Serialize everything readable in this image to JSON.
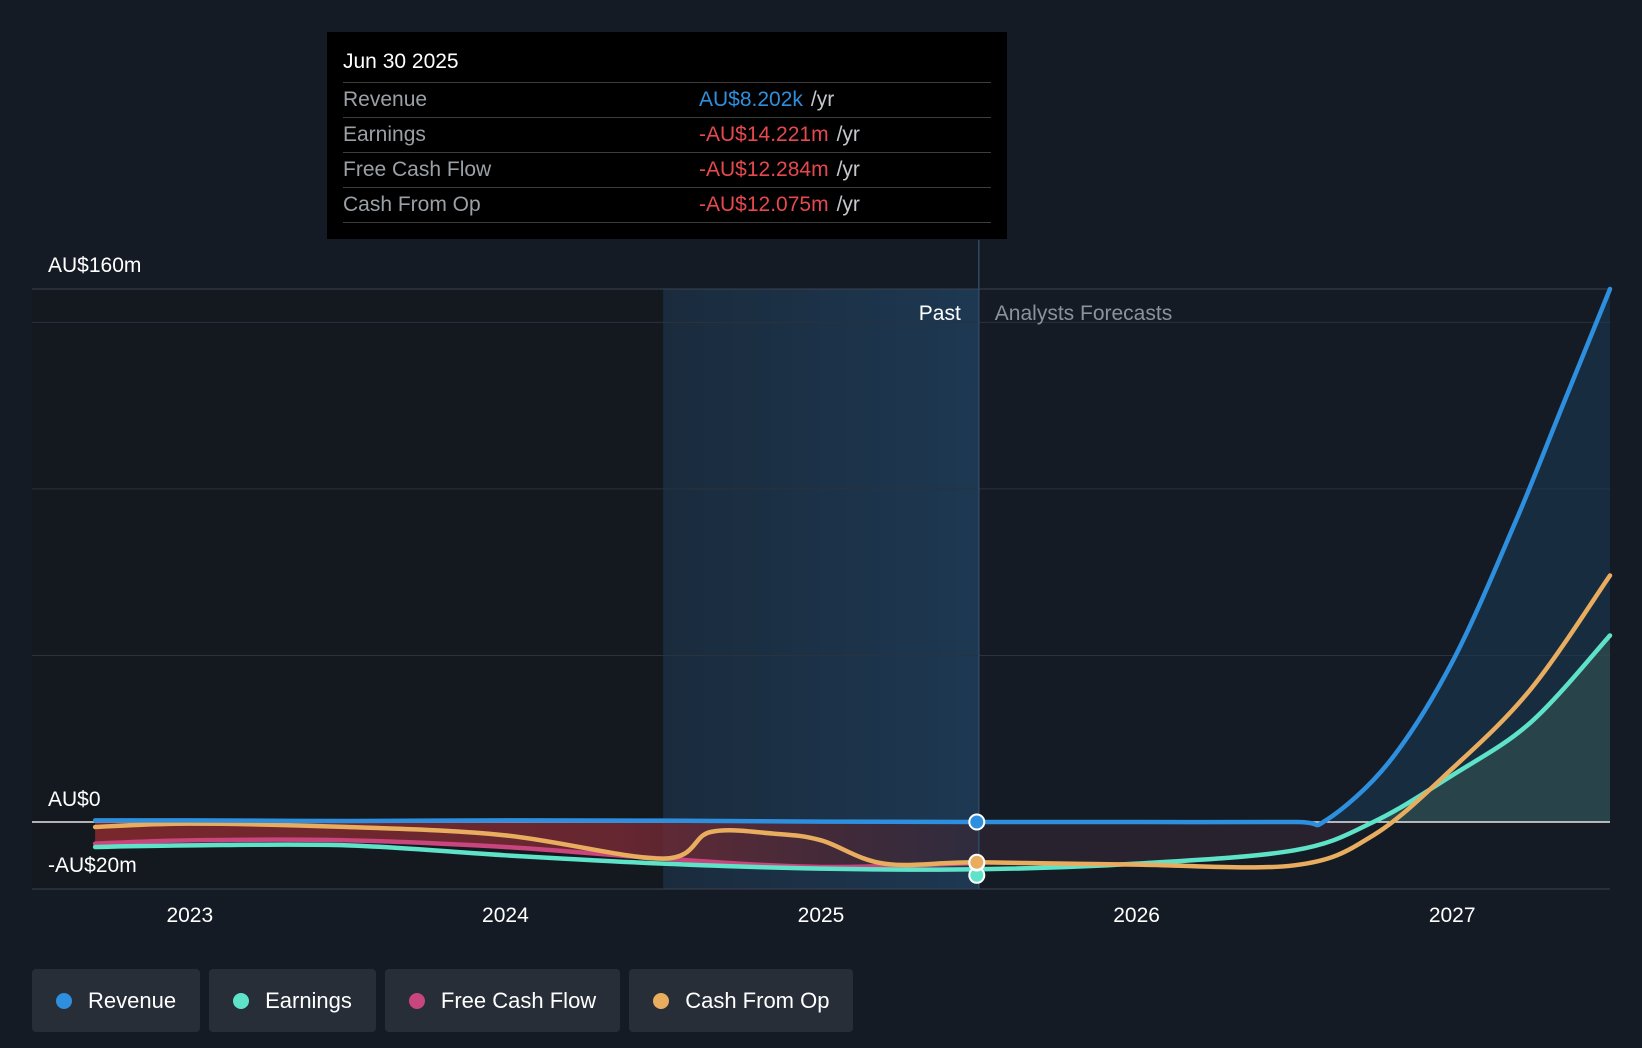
{
  "tooltip": {
    "date": "Jun 30 2025",
    "rows": [
      {
        "label": "Revenue",
        "value": "AU$8.202k",
        "unit": "/yr",
        "color": "#2d8fdd"
      },
      {
        "label": "Earnings",
        "value": "-AU$14.221m",
        "unit": "/yr",
        "color": "#e5484d"
      },
      {
        "label": "Free Cash Flow",
        "value": "-AU$12.284m",
        "unit": "/yr",
        "color": "#e5484d"
      },
      {
        "label": "Cash From Op",
        "value": "-AU$12.075m",
        "unit": "/yr",
        "color": "#e5484d"
      }
    ]
  },
  "legend": [
    {
      "label": "Revenue",
      "color": "#2d8fdd"
    },
    {
      "label": "Earnings",
      "color": "#5ee3c8"
    },
    {
      "label": "Free Cash Flow",
      "color": "#c9457e"
    },
    {
      "label": "Cash From Op",
      "color": "#e8ad5e"
    }
  ],
  "chart_data": {
    "type": "line",
    "title": "",
    "y_axis_labels": [
      {
        "text": "AU$160m",
        "value": 160
      },
      {
        "text": "AU$0",
        "value": 0
      },
      {
        "text": "-AU$20m",
        "value": -20
      }
    ],
    "ylim": [
      -20,
      160
    ],
    "xlim": [
      2022.5,
      2027.5
    ],
    "x_ticks": [
      {
        "text": "2023",
        "value": 2023
      },
      {
        "text": "2024",
        "value": 2024
      },
      {
        "text": "2025",
        "value": 2025
      },
      {
        "text": "2026",
        "value": 2026
      },
      {
        "text": "2027",
        "value": 2027
      }
    ],
    "past_label": "Past",
    "forecast_label": "Analysts Forecasts",
    "past_end": 2025.5,
    "highlight_start": 2024.5,
    "series": [
      {
        "name": "Revenue",
        "color": "#2d8fdd",
        "fill": true,
        "points": [
          [
            2022.7,
            0.5
          ],
          [
            2023,
            0.5
          ],
          [
            2023.5,
            0.3
          ],
          [
            2024,
            0.5
          ],
          [
            2024.5,
            0.4
          ],
          [
            2025,
            0.1
          ],
          [
            2025.5,
            0.008
          ],
          [
            2026,
            0
          ],
          [
            2026.5,
            0
          ],
          [
            2026.6,
            0.5
          ],
          [
            2026.8,
            18
          ],
          [
            2027,
            48
          ],
          [
            2027.2,
            90
          ],
          [
            2027.35,
            125
          ],
          [
            2027.5,
            160
          ]
        ]
      },
      {
        "name": "Earnings",
        "color": "#5ee3c8",
        "fill": true,
        "points": [
          [
            2022.7,
            -7.5
          ],
          [
            2023,
            -7
          ],
          [
            2023.5,
            -7
          ],
          [
            2024,
            -10
          ],
          [
            2024.5,
            -12.5
          ],
          [
            2025,
            -14
          ],
          [
            2025.5,
            -14.2
          ],
          [
            2026,
            -12.5
          ],
          [
            2026.5,
            -8.5
          ],
          [
            2026.75,
            0
          ],
          [
            2027,
            14
          ],
          [
            2027.25,
            30
          ],
          [
            2027.5,
            56
          ]
        ]
      },
      {
        "name": "Free Cash Flow",
        "color": "#c9457e",
        "fill": false,
        "points": [
          [
            2022.7,
            -6.5
          ],
          [
            2023,
            -5.5
          ],
          [
            2023.5,
            -5.5
          ],
          [
            2024,
            -7.5
          ],
          [
            2024.5,
            -11
          ],
          [
            2025,
            -13.5
          ],
          [
            2025.5,
            -12.3
          ]
        ]
      },
      {
        "name": "Cash From Op",
        "color": "#e8ad5e",
        "fill": false,
        "points": [
          [
            2022.7,
            -1.5
          ],
          [
            2023,
            -0.5
          ],
          [
            2023.5,
            -1.5
          ],
          [
            2024,
            -4
          ],
          [
            2024.5,
            -11
          ],
          [
            2024.65,
            -3
          ],
          [
            2024.85,
            -3.5
          ],
          [
            2025,
            -5.5
          ],
          [
            2025.2,
            -12.5
          ],
          [
            2025.5,
            -12.1
          ],
          [
            2026,
            -12.8
          ],
          [
            2026.5,
            -13
          ],
          [
            2026.75,
            -4
          ],
          [
            2027,
            16
          ],
          [
            2027.25,
            40
          ],
          [
            2027.5,
            74
          ]
        ]
      }
    ]
  }
}
